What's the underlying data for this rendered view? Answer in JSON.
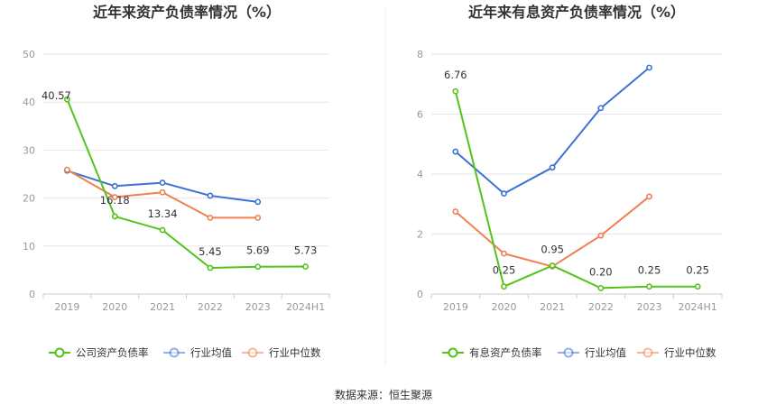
{
  "source_label": "数据来源：恒生聚源",
  "chart_data": [
    {
      "type": "line",
      "title": "近年来资产负债率情况（%）",
      "categories": [
        "2019",
        "2020",
        "2021",
        "2022",
        "2023",
        "2024H1"
      ],
      "ylim": [
        0,
        50
      ],
      "yticks": [
        0,
        10,
        20,
        30,
        40,
        50
      ],
      "grid": true,
      "legend_position": "bottom",
      "series": [
        {
          "name": "公司资产负债率",
          "color": "#52c41a",
          "values": [
            40.57,
            16.18,
            13.34,
            5.45,
            5.69,
            5.73
          ],
          "labels": [
            "40.57",
            "16.18",
            "13.34",
            "5.45",
            "5.69",
            "5.73"
          ]
        },
        {
          "name": "行业均值",
          "color": "#3a72d8",
          "values": [
            25.7,
            22.5,
            23.2,
            20.5,
            19.2,
            null
          ]
        },
        {
          "name": "行业中位数",
          "color": "#f08050",
          "values": [
            25.9,
            20.2,
            21.2,
            15.9,
            15.9,
            null
          ]
        }
      ]
    },
    {
      "type": "line",
      "title": "近年来有息资产负债率情况（%）",
      "categories": [
        "2019",
        "2020",
        "2021",
        "2022",
        "2023",
        "2024H1"
      ],
      "ylim": [
        0,
        8
      ],
      "yticks": [
        0,
        2,
        4,
        6,
        8
      ],
      "grid": true,
      "legend_position": "bottom",
      "series": [
        {
          "name": "有息资产负债率",
          "color": "#52c41a",
          "values": [
            6.76,
            0.25,
            0.95,
            0.2,
            0.25,
            0.25
          ],
          "labels": [
            "6.76",
            "0.25",
            "0.95",
            "0.20",
            "0.25",
            "0.25"
          ]
        },
        {
          "name": "行业均值",
          "color": "#3a72d8",
          "values": [
            4.75,
            3.35,
            4.22,
            6.2,
            7.55,
            null
          ]
        },
        {
          "name": "行业中位数",
          "color": "#f08050",
          "values": [
            2.75,
            1.35,
            0.92,
            1.95,
            3.25,
            null
          ]
        }
      ]
    }
  ]
}
